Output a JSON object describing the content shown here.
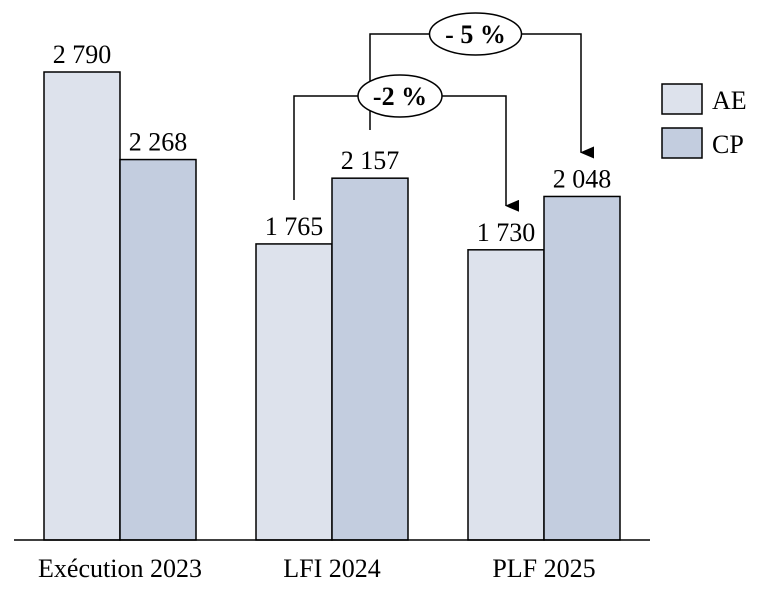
{
  "chart_data": {
    "type": "bar",
    "categories": [
      "Exécution 2023",
      "LFI 2024",
      "PLF 2025"
    ],
    "series": [
      {
        "name": "AE",
        "values": [
          2790,
          1765,
          1730
        ],
        "labels": [
          "2 790",
          "1 765",
          "1 730"
        ],
        "color": "#dde2ec"
      },
      {
        "name": "CP",
        "values": [
          2268,
          2157,
          2048
        ],
        "labels": [
          "2 268",
          "2 157",
          "2 048"
        ],
        "color": "#c3cddf"
      }
    ],
    "title": "",
    "xlabel": "",
    "ylabel": "",
    "ylim": [
      0,
      2790
    ],
    "grid": false,
    "legend_position": "right",
    "annotations": [
      {
        "label": "-2 %",
        "from_category": "LFI 2024",
        "from_series": "AE",
        "to_category": "PLF 2025",
        "to_series": "AE"
      },
      {
        "label": "- 5 %",
        "from_category": "LFI 2024",
        "from_series": "CP",
        "to_category": "PLF 2025",
        "to_series": "CP"
      }
    ]
  }
}
